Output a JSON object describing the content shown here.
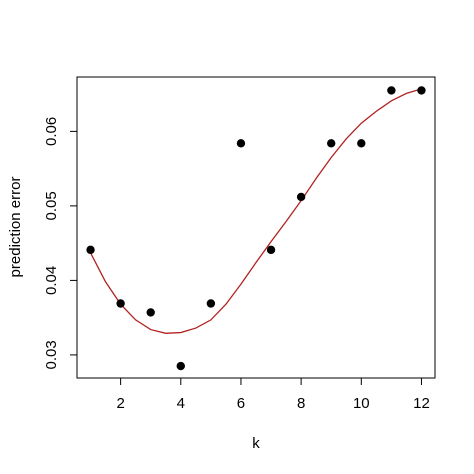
{
  "chart_data": {
    "type": "scatter",
    "title": "",
    "xlabel": "k",
    "ylabel": "prediction error",
    "xlim": [
      0.55,
      12.45
    ],
    "ylim": [
      0.0269,
      0.0673
    ],
    "x_ticks": [
      2,
      4,
      6,
      8,
      10,
      12
    ],
    "y_ticks": [
      0.03,
      0.04,
      0.05,
      0.06
    ],
    "x_tick_labels": [
      "2",
      "4",
      "6",
      "8",
      "10",
      "12"
    ],
    "y_tick_labels": [
      "0.03",
      "0.04",
      "0.05",
      "0.06"
    ],
    "grid": false,
    "legend": "none",
    "point_color": "#000000",
    "curve_color": "#b22222",
    "series": [
      {
        "type": "scatter",
        "x": [
          1,
          2,
          3,
          4,
          5,
          6,
          7,
          8,
          9,
          10,
          11,
          12
        ],
        "y": [
          0.0441,
          0.0369,
          0.0357,
          0.0285,
          0.0369,
          0.0584,
          0.0441,
          0.0512,
          0.0584,
          0.0584,
          0.0655,
          0.0655
        ]
      },
      {
        "type": "line",
        "x": [
          1,
          1.5,
          2,
          2.5,
          3,
          3.5,
          4,
          4.5,
          5,
          5.5,
          6,
          6.5,
          7,
          7.5,
          8,
          8.5,
          9,
          9.5,
          10,
          10.5,
          11,
          11.5,
          12
        ],
        "y": [
          0.0437,
          0.0398,
          0.0368,
          0.0347,
          0.0334,
          0.0329,
          0.033,
          0.0336,
          0.0347,
          0.0368,
          0.0395,
          0.0424,
          0.0452,
          0.0479,
          0.0507,
          0.0537,
          0.0565,
          0.059,
          0.0611,
          0.0627,
          0.0641,
          0.0651,
          0.0657
        ]
      }
    ]
  }
}
